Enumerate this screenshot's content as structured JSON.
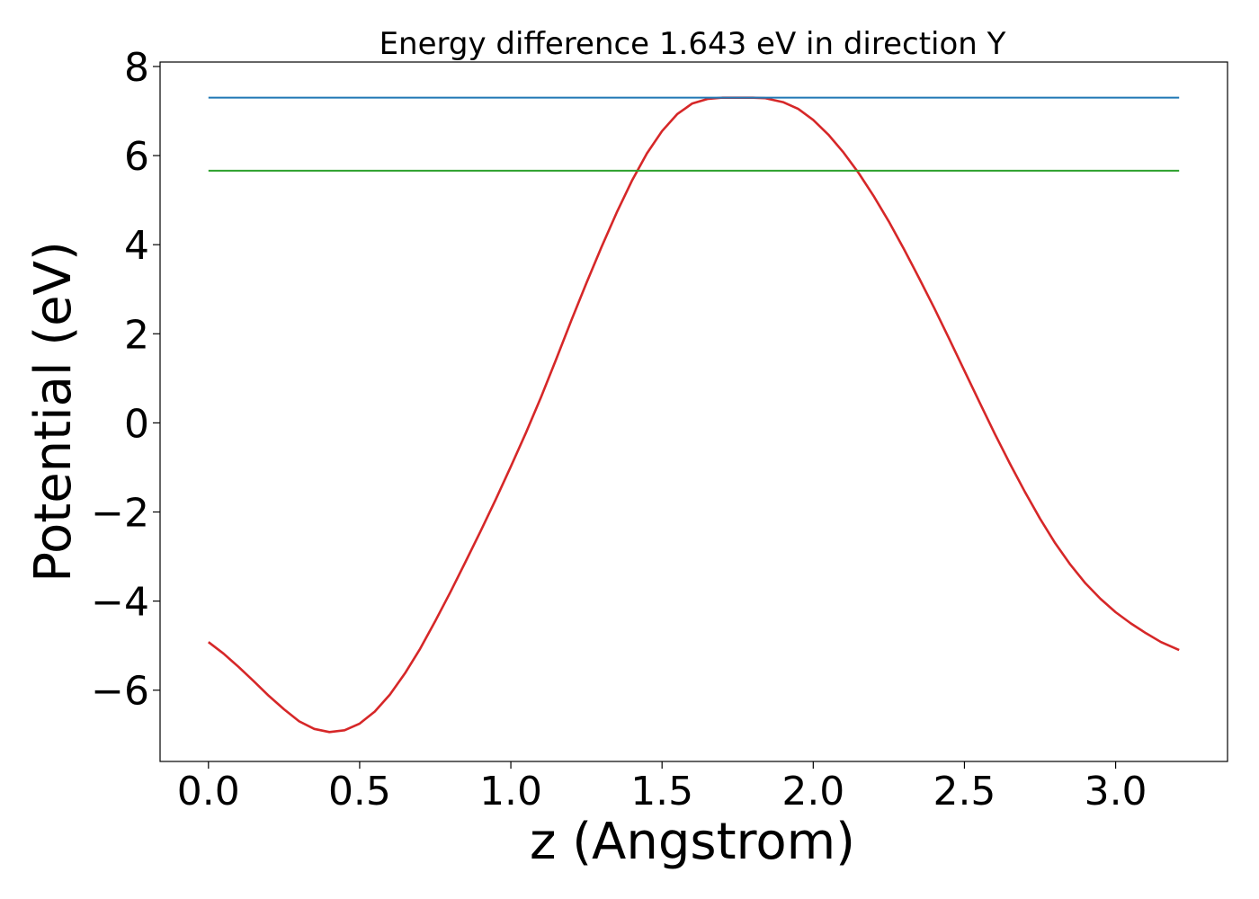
{
  "chart_data": {
    "type": "line",
    "title": "Energy difference 1.643 eV in direction Y",
    "xlabel": "z (Angstrom)",
    "ylabel": "Potential (eV)",
    "xlim": [
      -0.16,
      3.37
    ],
    "ylim": [
      -7.6,
      8.1
    ],
    "x_ticks": [
      0.0,
      0.5,
      1.0,
      1.5,
      2.0,
      2.5,
      3.0
    ],
    "x_tick_labels": [
      "0.0",
      "0.5",
      "1.0",
      "1.5",
      "2.0",
      "2.5",
      "3.0"
    ],
    "y_ticks": [
      8,
      6,
      4,
      2,
      0,
      -2,
      -4,
      -6
    ],
    "y_tick_labels": [
      "8",
      "6",
      "4",
      "2",
      "0",
      "−2",
      "−4",
      "−6"
    ],
    "grid": false,
    "legend": "none",
    "series": [
      {
        "color": "#d62728",
        "x": [
          0.0,
          0.05,
          0.1,
          0.15,
          0.2,
          0.25,
          0.3,
          0.35,
          0.4,
          0.45,
          0.5,
          0.55,
          0.6,
          0.65,
          0.7,
          0.75,
          0.8,
          0.85,
          0.9,
          0.95,
          1.0,
          1.05,
          1.1,
          1.15,
          1.2,
          1.25,
          1.3,
          1.35,
          1.4,
          1.45,
          1.5,
          1.55,
          1.6,
          1.65,
          1.7,
          1.75,
          1.8,
          1.84,
          1.9,
          1.95,
          2.0,
          2.05,
          2.1,
          2.15,
          2.2,
          2.25,
          2.3,
          2.35,
          2.4,
          2.45,
          2.5,
          2.55,
          2.6,
          2.65,
          2.7,
          2.75,
          2.8,
          2.85,
          2.9,
          2.95,
          3.0,
          3.05,
          3.1,
          3.15,
          3.21
        ],
        "y": [
          -4.92,
          -5.18,
          -5.48,
          -5.8,
          -6.13,
          -6.43,
          -6.7,
          -6.87,
          -6.94,
          -6.9,
          -6.75,
          -6.48,
          -6.1,
          -5.62,
          -5.07,
          -4.45,
          -3.8,
          -3.12,
          -2.43,
          -1.72,
          -0.98,
          -0.22,
          0.58,
          1.43,
          2.3,
          3.14,
          3.95,
          4.72,
          5.43,
          6.05,
          6.55,
          6.93,
          7.17,
          7.27,
          7.3,
          7.3,
          7.3,
          7.29,
          7.2,
          7.05,
          6.8,
          6.47,
          6.07,
          5.61,
          5.09,
          4.52,
          3.9,
          3.25,
          2.58,
          1.88,
          1.17,
          0.46,
          -0.24,
          -0.91,
          -1.55,
          -2.15,
          -2.7,
          -3.18,
          -3.6,
          -3.95,
          -4.25,
          -4.5,
          -4.72,
          -4.92,
          -5.1
        ]
      },
      {
        "color": "#1f77b4",
        "x": [
          0.0,
          3.21
        ],
        "y": [
          7.3,
          7.3
        ]
      },
      {
        "color": "#2ca02c",
        "x": [
          0.0,
          3.21
        ],
        "y": [
          5.66,
          5.66
        ]
      }
    ]
  }
}
